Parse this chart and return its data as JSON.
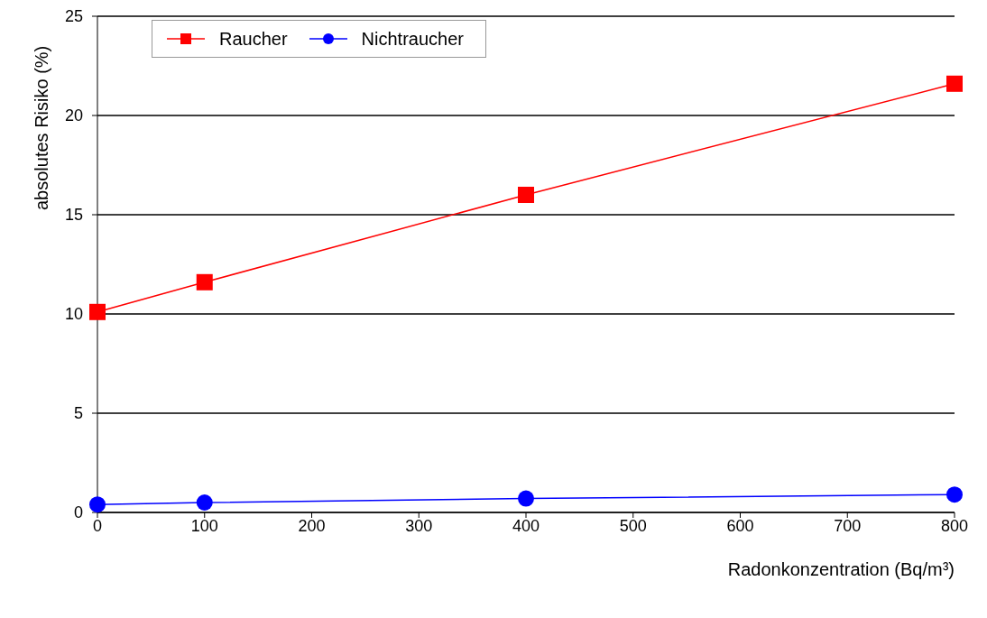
{
  "chart_data": {
    "type": "line",
    "xlabel": "Radonkonzentration (Bq/m³)",
    "ylabel": "absolutes Risiko (%)",
    "x": [
      0,
      100,
      400,
      800
    ],
    "series": [
      {
        "name": "Raucher",
        "color": "#ff0000",
        "marker": "square",
        "values": [
          10.1,
          11.6,
          16.0,
          21.6
        ]
      },
      {
        "name": "Nichtraucher",
        "color": "#0000ff",
        "marker": "circle",
        "values": [
          0.4,
          0.5,
          0.7,
          0.9
        ]
      }
    ],
    "xlim": [
      0,
      800
    ],
    "xticks": [
      0,
      100,
      200,
      300,
      400,
      500,
      600,
      700,
      800
    ],
    "ylim": [
      0,
      25
    ],
    "yticks": [
      0,
      5,
      10,
      15,
      20,
      25
    ],
    "grid": "y",
    "legend": "top left"
  }
}
